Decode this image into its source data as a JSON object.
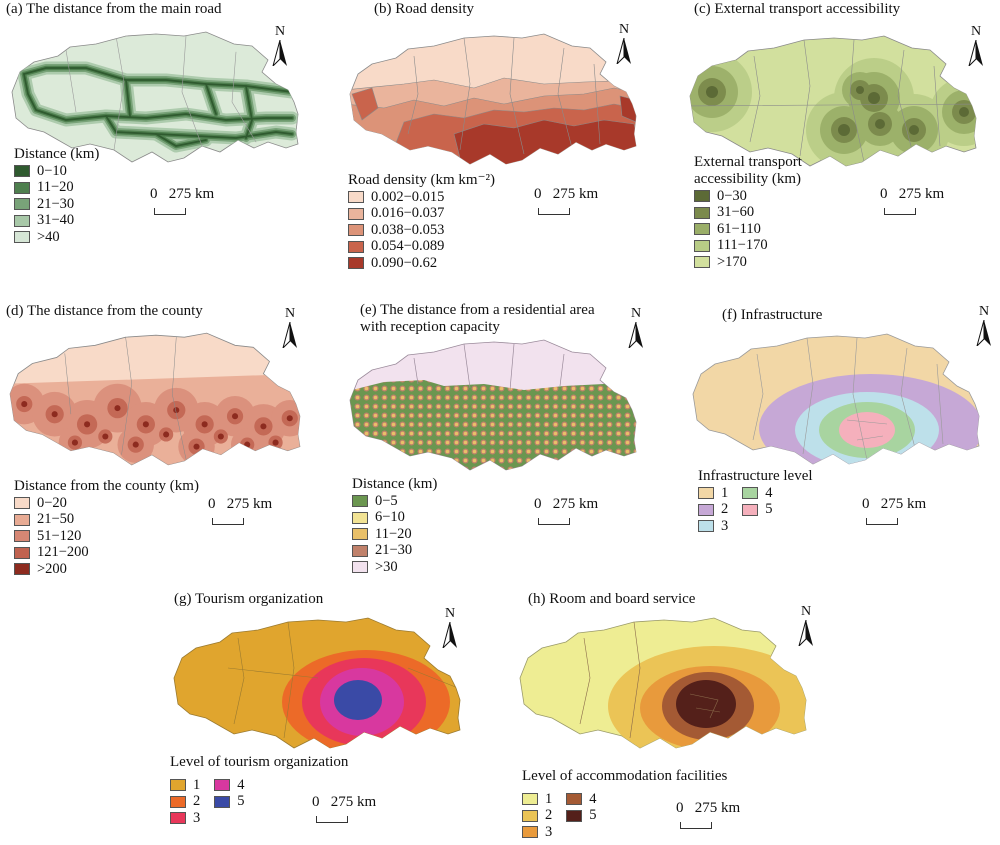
{
  "colors": {
    "boundary": "#8a8a8a",
    "road_panel": [
      "#2f5a2f",
      "#4e7f4e",
      "#79a379",
      "#a8c8a8",
      "#d6e6d6"
    ],
    "road_density": [
      "#f8dac8",
      "#eab49c",
      "#dc9378",
      "#c9644c",
      "#a8392a"
    ],
    "external_access": [
      "#5c6a36",
      "#7b8a4c",
      "#9aae68",
      "#b8cc86",
      "#d2e09e"
    ],
    "county_distance": [
      "#f8dac8",
      "#e8ab94",
      "#d68774",
      "#c0624f",
      "#8d2b1f"
    ],
    "residential": [
      "#6b9650",
      "#f2e394",
      "#e9c069",
      "#c0816b",
      "#f2e2ee"
    ],
    "infrastructure": [
      "#f2d7a6",
      "#c6a8d6",
      "#bde0ea",
      "#a8d4a0",
      "#f5b0bc"
    ],
    "tourism": [
      "#e0a52e",
      "#ec6a28",
      "#e8375a",
      "#d8389f",
      "#3a4aa6"
    ],
    "accommodation": [
      "#eeed93",
      "#ebc456",
      "#e89a3c",
      "#a45a34",
      "#54201a"
    ]
  },
  "panels": [
    {
      "id": "a",
      "title": "(a) The distance from the main road",
      "legend_title": "Distance (km)",
      "legend": [
        "0−10",
        "11−20",
        "21−30",
        "31−40",
        ">40"
      ],
      "north": "N",
      "scale": "0   275 km"
    },
    {
      "id": "b",
      "title": "(b) Road density",
      "legend_title": "Road density (km km⁻²)",
      "legend": [
        "0.002−0.015",
        "0.016−0.037",
        "0.038−0.053",
        "0.054−0.089",
        "0.090−0.62"
      ],
      "north": "N",
      "scale": "0   275 km"
    },
    {
      "id": "c",
      "title": "(c) External transport accessibility",
      "legend_title": "External transport accessibility (km)",
      "legend": [
        "0−30",
        "31−60",
        "61−110",
        "111−170",
        ">170"
      ],
      "north": "N",
      "scale": "0   275 km"
    },
    {
      "id": "d",
      "title": "(d) The distance from the county",
      "legend_title": "Distance from the county (km)",
      "legend": [
        "0−20",
        "21−50",
        "51−120",
        "121−200",
        ">200"
      ],
      "north": "N",
      "scale": "0   275 km"
    },
    {
      "id": "e",
      "title": "(e) The distance from a residential area with reception capacity",
      "legend_title": "Distance (km)",
      "legend": [
        "0−5",
        "6−10",
        "11−20",
        "21−30",
        ">30"
      ],
      "north": "N",
      "scale": "0   275 km"
    },
    {
      "id": "f",
      "title": "(f) Infrastructure",
      "legend_title": "Infrastructure level",
      "legend": [
        "1",
        "2",
        "3",
        "4",
        "5"
      ],
      "north": "N",
      "scale": "0   275 km"
    },
    {
      "id": "g",
      "title": "(g) Tourism organization",
      "legend_title": "Level of tourism organization",
      "legend": [
        "1",
        "2",
        "3",
        "4",
        "5"
      ],
      "north": "N",
      "scale": "0   275 km"
    },
    {
      "id": "h",
      "title": "(h) Room and board service",
      "legend_title": "Level of accommodation facilities",
      "legend": [
        "1",
        "2",
        "3",
        "4",
        "5"
      ],
      "north": "N",
      "scale": "0   275 km"
    }
  ]
}
